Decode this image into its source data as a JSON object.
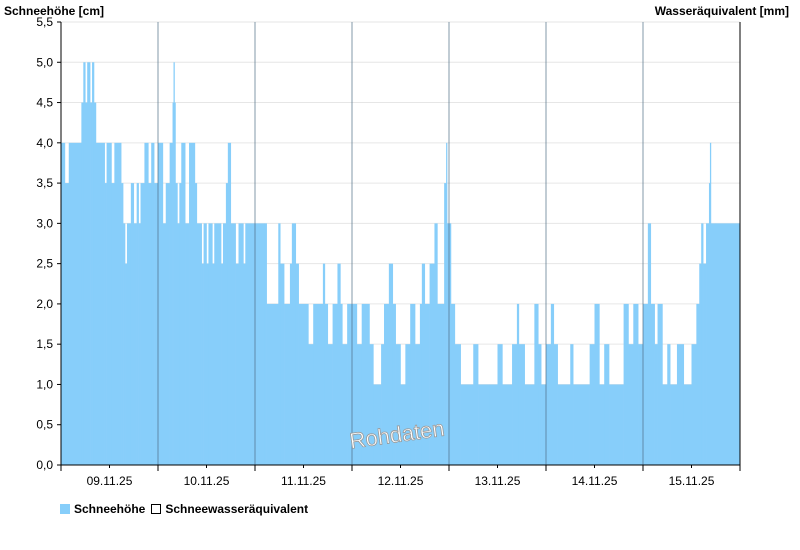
{
  "chart_data": {
    "type": "bar",
    "ylabel_left": "Schneehöhe [cm]",
    "ylabel_right": "Wasseräquivalent [mm]",
    "ylim": [
      0,
      5.5
    ],
    "yticks": [
      "0,0",
      "0,5",
      "1,0",
      "1,5",
      "2,0",
      "2,5",
      "3,0",
      "3,5",
      "4,0",
      "4,5",
      "5,0",
      "5,5"
    ],
    "xlim": [
      8.5,
      15.5
    ],
    "date_ticks": [
      {
        "label": "09.11.25",
        "pos": 9.0
      },
      {
        "label": "10.11.25",
        "pos": 10.0
      },
      {
        "label": "11.11.25",
        "pos": 11.0
      },
      {
        "label": "12.11.25",
        "pos": 12.0
      },
      {
        "label": "13.11.25",
        "pos": 13.0
      },
      {
        "label": "14.11.25",
        "pos": 14.0
      },
      {
        "label": "15.11.25",
        "pos": 15.0
      }
    ],
    "day_boundaries": [
      9.5,
      10.5,
      11.5,
      12.5,
      13.5,
      14.5,
      15.5
    ],
    "grid": true,
    "legend_position": "bottom-left",
    "series": [
      {
        "name": "Schneehöhe",
        "color": "#87cefa",
        "segments": [
          [
            8.5,
            4.0
          ],
          [
            8.54,
            3.5
          ],
          [
            8.58,
            4.0
          ],
          [
            8.71,
            4.5
          ],
          [
            8.73,
            5.0
          ],
          [
            8.75,
            4.5
          ],
          [
            8.77,
            5.0
          ],
          [
            8.8,
            4.5
          ],
          [
            8.82,
            5.0
          ],
          [
            8.84,
            4.5
          ],
          [
            8.86,
            4.0
          ],
          [
            8.95,
            3.5
          ],
          [
            8.97,
            4.0
          ],
          [
            9.02,
            3.5
          ],
          [
            9.05,
            4.0
          ],
          [
            9.12,
            3.5
          ],
          [
            9.14,
            3.0
          ],
          [
            9.16,
            2.5
          ],
          [
            9.18,
            3.0
          ],
          [
            9.22,
            3.5
          ],
          [
            9.25,
            3.0
          ],
          [
            9.28,
            3.5
          ],
          [
            9.3,
            3.0
          ],
          [
            9.32,
            3.5
          ],
          [
            9.36,
            4.0
          ],
          [
            9.4,
            3.5
          ],
          [
            9.43,
            4.0
          ],
          [
            9.46,
            3.5
          ],
          [
            9.5,
            4.0
          ],
          [
            9.55,
            3.0
          ],
          [
            9.58,
            3.5
          ],
          [
            9.62,
            4.0
          ],
          [
            9.65,
            4.5
          ],
          [
            9.66,
            5.0
          ],
          [
            9.67,
            4.5
          ],
          [
            9.68,
            3.5
          ],
          [
            9.7,
            3.0
          ],
          [
            9.72,
            3.5
          ],
          [
            9.74,
            4.0
          ],
          [
            9.78,
            3.0
          ],
          [
            9.82,
            4.0
          ],
          [
            9.88,
            3.5
          ],
          [
            9.9,
            3.0
          ],
          [
            9.95,
            2.5
          ],
          [
            9.97,
            3.0
          ],
          [
            10.0,
            2.5
          ],
          [
            10.02,
            3.0
          ],
          [
            10.06,
            2.5
          ],
          [
            10.08,
            3.0
          ],
          [
            10.15,
            2.5
          ],
          [
            10.17,
            3.0
          ],
          [
            10.2,
            3.5
          ],
          [
            10.22,
            4.0
          ],
          [
            10.25,
            3.0
          ],
          [
            10.3,
            2.5
          ],
          [
            10.33,
            3.0
          ],
          [
            10.38,
            2.5
          ],
          [
            10.4,
            3.0
          ],
          [
            10.6,
            3.0
          ],
          [
            10.62,
            2.0
          ],
          [
            10.7,
            2.0
          ],
          [
            10.74,
            3.0
          ],
          [
            10.76,
            2.5
          ],
          [
            10.8,
            2.0
          ],
          [
            10.86,
            2.5
          ],
          [
            10.88,
            3.0
          ],
          [
            10.92,
            2.5
          ],
          [
            10.95,
            2.0
          ],
          [
            11.05,
            1.5
          ],
          [
            11.1,
            2.0
          ],
          [
            11.2,
            2.5
          ],
          [
            11.22,
            2.0
          ],
          [
            11.25,
            1.5
          ],
          [
            11.3,
            2.0
          ],
          [
            11.35,
            2.5
          ],
          [
            11.38,
            2.0
          ],
          [
            11.4,
            1.5
          ],
          [
            11.45,
            2.0
          ],
          [
            11.55,
            1.5
          ],
          [
            11.6,
            2.0
          ],
          [
            11.68,
            1.5
          ],
          [
            11.72,
            1.0
          ],
          [
            11.8,
            1.5
          ],
          [
            11.83,
            2.0
          ],
          [
            11.88,
            2.5
          ],
          [
            11.92,
            2.0
          ],
          [
            11.95,
            1.5
          ],
          [
            12.0,
            1.0
          ],
          [
            12.05,
            1.5
          ],
          [
            12.1,
            2.0
          ],
          [
            12.15,
            1.5
          ],
          [
            12.2,
            2.0
          ],
          [
            12.22,
            2.5
          ],
          [
            12.25,
            2.0
          ],
          [
            12.3,
            2.5
          ],
          [
            12.35,
            3.0
          ],
          [
            12.38,
            2.0
          ],
          [
            12.45,
            3.5
          ],
          [
            12.47,
            4.0
          ],
          [
            12.48,
            3.0
          ],
          [
            12.52,
            2.0
          ],
          [
            12.56,
            1.5
          ],
          [
            12.62,
            1.0
          ],
          [
            12.75,
            1.5
          ],
          [
            12.8,
            1.0
          ],
          [
            12.92,
            1.0
          ],
          [
            13.0,
            1.5
          ],
          [
            13.05,
            1.0
          ],
          [
            13.15,
            1.5
          ],
          [
            13.2,
            2.0
          ],
          [
            13.22,
            1.5
          ],
          [
            13.28,
            1.0
          ],
          [
            13.38,
            2.0
          ],
          [
            13.42,
            1.5
          ],
          [
            13.45,
            1.0
          ],
          [
            13.5,
            1.5
          ],
          [
            13.55,
            2.0
          ],
          [
            13.58,
            1.5
          ],
          [
            13.62,
            1.0
          ],
          [
            13.75,
            1.5
          ],
          [
            13.78,
            1.0
          ],
          [
            13.95,
            1.5
          ],
          [
            14.0,
            2.0
          ],
          [
            14.05,
            1.0
          ],
          [
            14.1,
            1.5
          ],
          [
            14.15,
            1.0
          ],
          [
            14.3,
            2.0
          ],
          [
            14.35,
            1.5
          ],
          [
            14.4,
            2.0
          ],
          [
            14.45,
            1.5
          ],
          [
            14.5,
            2.0
          ],
          [
            14.55,
            3.0
          ],
          [
            14.58,
            2.0
          ],
          [
            14.62,
            1.5
          ],
          [
            14.65,
            2.0
          ],
          [
            14.7,
            1.0
          ],
          [
            14.75,
            1.5
          ],
          [
            14.78,
            1.0
          ],
          [
            14.85,
            1.5
          ],
          [
            14.92,
            1.0
          ],
          [
            15.0,
            1.5
          ],
          [
            15.05,
            2.0
          ],
          [
            15.08,
            2.5
          ],
          [
            15.1,
            3.0
          ],
          [
            15.12,
            2.5
          ],
          [
            15.15,
            3.0
          ],
          [
            15.18,
            3.5
          ],
          [
            15.19,
            4.0
          ],
          [
            15.2,
            3.0
          ],
          [
            15.25,
            3.0
          ]
        ]
      },
      {
        "name": "Schneewasseräquivalent",
        "color": "#ffffff",
        "segments": []
      }
    ]
  },
  "watermark": "Rohdaten"
}
